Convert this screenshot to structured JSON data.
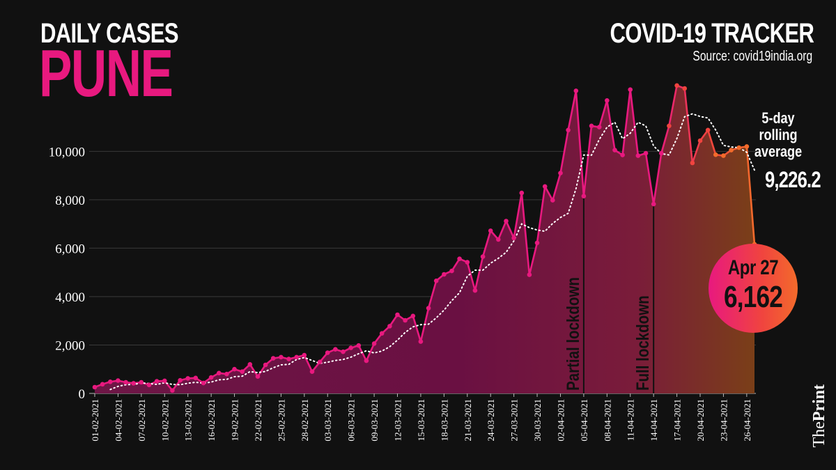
{
  "header": {
    "subtitle": "DAILY CASES",
    "city": "PUNE",
    "tracker_title": "COVID-19 TRACKER",
    "source": "Source: covid19india.org"
  },
  "rolling_average": {
    "label_line1": "5-day",
    "label_line2": "rolling",
    "label_line3": "average",
    "value": "9,226.2"
  },
  "callout": {
    "date": "Apr 27",
    "value": "6,162"
  },
  "brand": {
    "prefix": "The",
    "name": "Print"
  },
  "colors": {
    "background": "#111111",
    "accent_pink": "#e8197f",
    "accent_orange": "#f36b2b",
    "area_fill": "#6e1646"
  },
  "chart_data": {
    "type": "area",
    "x": [
      "01-02-2021",
      "02-02-2021",
      "03-02-2021",
      "04-02-2021",
      "05-02-2021",
      "06-02-2021",
      "07-02-2021",
      "08-02-2021",
      "09-02-2021",
      "10-02-2021",
      "11-02-2021",
      "12-02-2021",
      "13-02-2021",
      "14-02-2021",
      "15-02-2021",
      "16-02-2021",
      "17-02-2021",
      "18-02-2021",
      "19-02-2021",
      "20-02-2021",
      "21-02-2021",
      "22-02-2021",
      "23-02-2021",
      "24-02-2021",
      "25-02-2021",
      "26-02-2021",
      "27-02-2021",
      "28-02-2021",
      "01-03-2021",
      "02-03-2021",
      "03-03-2021",
      "04-03-2021",
      "05-03-2021",
      "06-03-2021",
      "07-03-2021",
      "08-03-2021",
      "09-03-2021",
      "10-03-2021",
      "11-03-2021",
      "12-03-2021",
      "13-03-2021",
      "14-03-2021",
      "15-03-2021",
      "16-03-2021",
      "17-03-2021",
      "18-03-2021",
      "19-03-2021",
      "20-03-2021",
      "21-03-2021",
      "22-03-2021",
      "23-03-2021",
      "24-03-2021",
      "25-03-2021",
      "26-03-2021",
      "27-03-2021",
      "28-03-2021",
      "29-03-2021",
      "30-03-2021",
      "31-03-2021",
      "01-04-2021",
      "02-04-2021",
      "03-04-2021",
      "04-04-2021",
      "05-04-2021",
      "06-04-2021",
      "07-04-2021",
      "08-04-2021",
      "09-04-2021",
      "10-04-2021",
      "11-04-2021",
      "12-04-2021",
      "13-04-2021",
      "14-04-2021",
      "15-04-2021",
      "16-04-2021",
      "17-04-2021",
      "18-04-2021",
      "19-04-2021",
      "20-04-2021",
      "21-04-2021",
      "22-04-2021",
      "23-04-2021",
      "24-04-2021",
      "25-04-2021",
      "26-04-2021",
      "27-04-2021"
    ],
    "x_tick_labels": [
      "01-02-2021",
      "04-02-2021",
      "07-02-2021",
      "10-02-2021",
      "13-02-2021",
      "16-02-2021",
      "19-02-2021",
      "22-02-2021",
      "25-02-2021",
      "28-02-2021",
      "03-03-2021",
      "06-03-2021",
      "09-03-2021",
      "12-03-2021",
      "15-03-2021",
      "18-03-2021",
      "21-03-2021",
      "24-03-2021",
      "27-03-2021",
      "30-03-2021",
      "02-04-2021",
      "05-04-2021",
      "08-04-2021",
      "11-04-2021",
      "14-04-2021",
      "17-04-2021",
      "20-04-2021",
      "23-04-2021",
      "26-04-2021"
    ],
    "series": [
      {
        "values": [
          260,
          380,
          480,
          530,
          460,
          420,
          460,
          350,
          500,
          520,
          120,
          540,
          620,
          640,
          430,
          660,
          840,
          800,
          1000,
          900,
          1200,
          700,
          1180,
          1450,
          1500,
          1420,
          1500,
          1580,
          900,
          1300,
          1680,
          1820,
          1720,
          1880,
          1980,
          1350,
          2060,
          2480,
          2780,
          3250,
          3020,
          3200,
          2140,
          3520,
          4650,
          4920,
          5060,
          5560,
          5420,
          4250,
          5650,
          6720,
          6360,
          7120,
          6420,
          8280,
          4900,
          6220,
          8550,
          7980,
          9100,
          10880,
          12500,
          8150,
          11050,
          11000,
          12100,
          10050,
          9850,
          12550,
          9820,
          9920,
          7820,
          9920,
          11050,
          12720,
          12600,
          9520,
          10440,
          10880,
          9860,
          9820,
          10050,
          10150,
          10200,
          6162
        ]
      },
      {
        "values": [
          null,
          null,
          160,
          290,
          360,
          370,
          430,
          410,
          370,
          440,
          370,
          360,
          420,
          460,
          420,
          470,
          560,
          580,
          690,
          710,
          900,
          860,
          910,
          1060,
          1180,
          1200,
          1400,
          1480,
          1360,
          1240,
          1290,
          1360,
          1400,
          1500,
          1640,
          1760,
          1670,
          1750,
          1930,
          2200,
          2520,
          2750,
          2840,
          2860,
          3120,
          3440,
          3830,
          4160,
          4840,
          5090,
          5090,
          5380,
          5580,
          5830,
          6300,
          7000,
          6850,
          6750,
          6700,
          7020,
          7270,
          7440,
          8460,
          9850,
          9840,
          10490,
          11000,
          11200,
          10520,
          10750,
          11200,
          11050,
          10220,
          9910,
          9850,
          10530,
          11430,
          11550,
          11440,
          11380,
          10880,
          10250,
          10180,
          10150,
          9960,
          9226
        ]
      }
    ],
    "annotations": [
      {
        "text": "Partial lockdown",
        "x": "05-04-2021"
      },
      {
        "text": "Full lockdown",
        "x": "14-04-2021"
      }
    ],
    "ylim": [
      0,
      12800
    ],
    "y_ticks": [
      0,
      2000,
      4000,
      6000,
      8000,
      10000
    ],
    "y_tick_labels": [
      "0",
      "2,000",
      "4,000",
      "6,000",
      "8,000",
      "10,000"
    ],
    "grid": "horizontal"
  }
}
